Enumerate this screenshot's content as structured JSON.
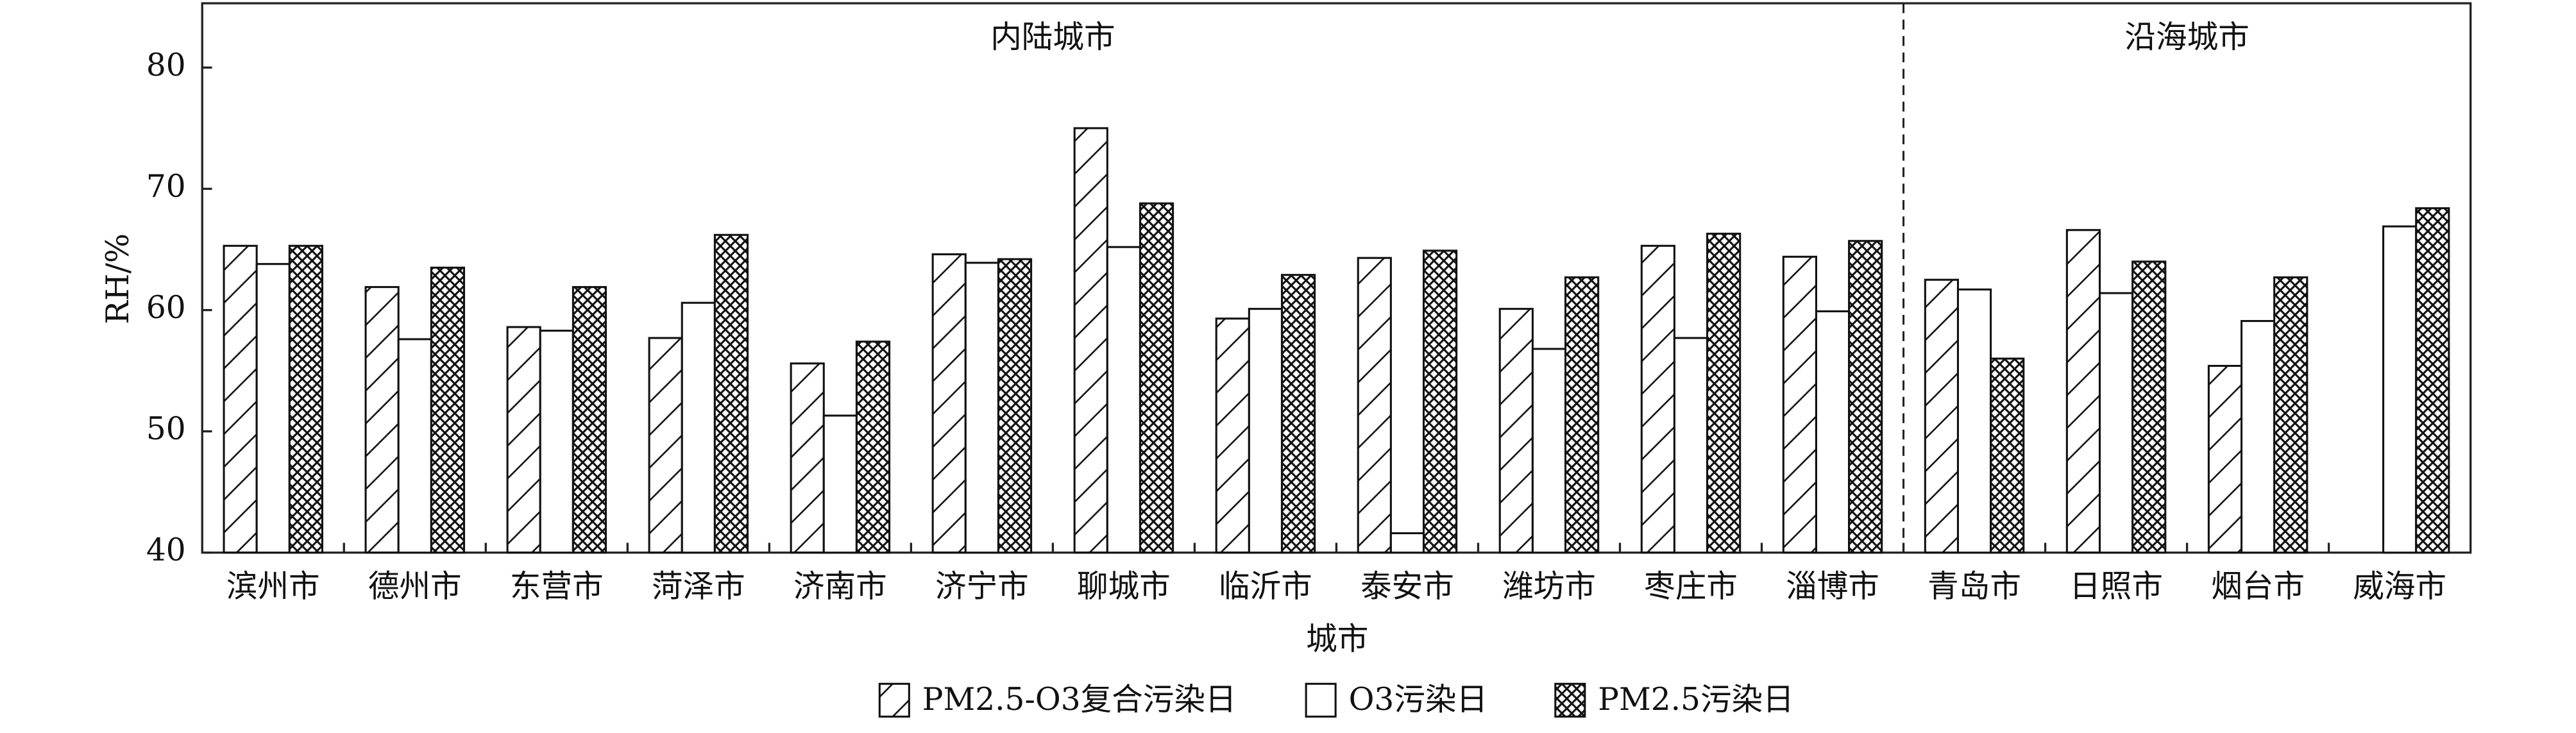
{
  "chart_data": {
    "type": "bar",
    "y_label": "RH/%",
    "x_label": "城市",
    "regions": [
      "内陆城市",
      "沿海城市"
    ],
    "categories": [
      "滨州市",
      "德州市",
      "东营市",
      "菏泽市",
      "济南市",
      "济宁市",
      "聊城市",
      "临沂市",
      "泰安市",
      "潍坊市",
      "枣庄市",
      "淄博市",
      "青岛市",
      "日照市",
      "烟台市",
      "威海市"
    ],
    "series": [
      {
        "name": "PM2.5-O3复合污染日",
        "color": "#111111",
        "pattern": "hatch",
        "values": [
          65.3,
          61.9,
          58.6,
          57.7,
          55.6,
          64.6,
          75.0,
          59.3,
          64.3,
          60.1,
          65.3,
          64.4,
          62.5,
          66.6,
          55.4,
          null
        ]
      },
      {
        "name": "O3污染日",
        "color": "#111111",
        "pattern": "none",
        "values": [
          63.8,
          57.6,
          58.3,
          60.6,
          51.3,
          63.9,
          65.2,
          60.1,
          41.6,
          56.8,
          57.7,
          59.9,
          61.7,
          61.4,
          59.1,
          66.9
        ]
      },
      {
        "name": "PM2.5污染日",
        "color": "#111111",
        "pattern": "crosshatch",
        "values": [
          65.3,
          63.5,
          61.9,
          66.2,
          57.4,
          64.2,
          68.8,
          62.9,
          64.9,
          62.7,
          66.3,
          65.7,
          56.0,
          64.0,
          62.7,
          68.4
        ]
      }
    ],
    "ylim": [
      40,
      85.3
    ],
    "yticks": [
      40,
      50,
      60,
      70,
      80
    ]
  }
}
